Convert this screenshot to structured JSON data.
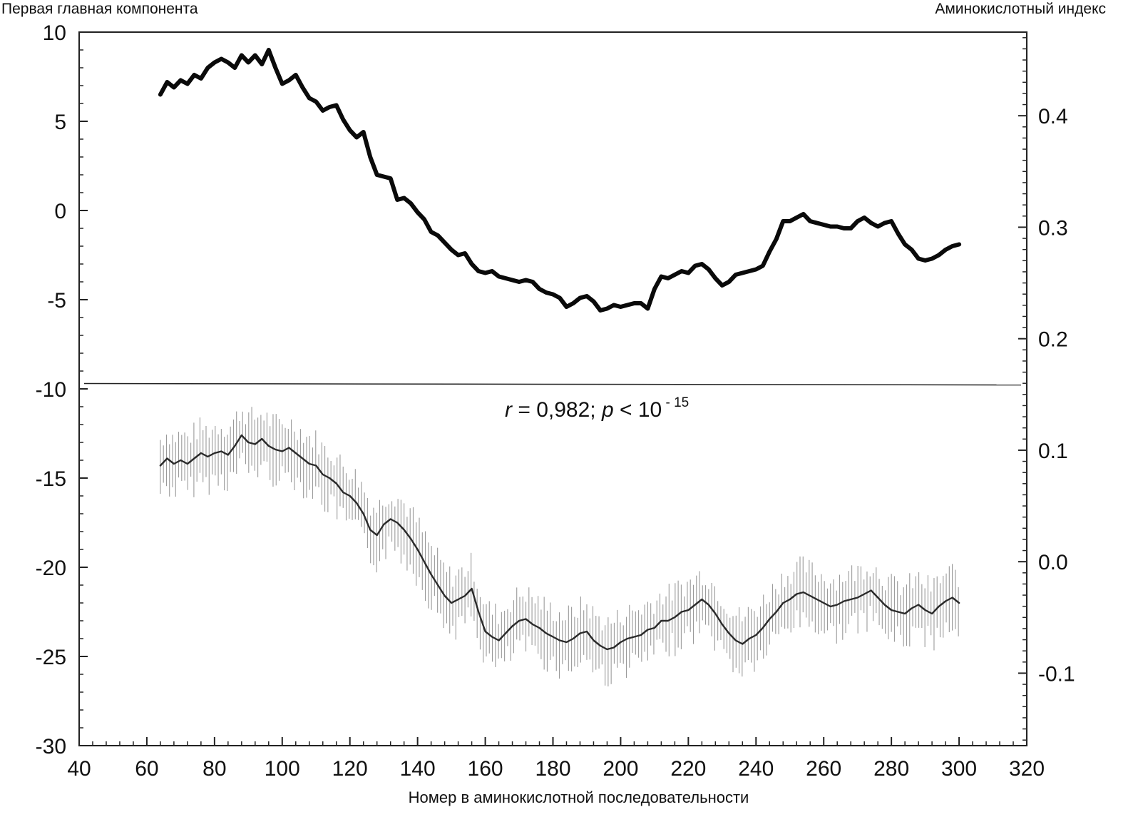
{
  "chart_data": {
    "type": "line",
    "title": "",
    "ylabel_left": "Первая главная компонента",
    "ylabel_right": "Аминокислотный индекс",
    "xlabel": "Номер в аминокислотной последовательности",
    "xlim": [
      40,
      320
    ],
    "ylim_left": [
      -30,
      10
    ],
    "ylim_right": [
      -0.165,
      0.475
    ],
    "x_ticks": [
      "40",
      "60",
      "80",
      "100",
      "120",
      "140",
      "160",
      "180",
      "200",
      "220",
      "240",
      "260",
      "280",
      "300",
      "320"
    ],
    "y_left_ticks": [
      "10",
      "5",
      "0",
      "-5",
      "-10",
      "-15",
      "-20",
      "-25",
      "-30"
    ],
    "y_right_ticks": [
      "0.4",
      "0.3",
      "0.2",
      "0.1",
      "0.0",
      "-0.1"
    ],
    "divider_y_left": -9.7,
    "annotation": {
      "r_label": "r",
      "r_value": " = 0,982;  ",
      "p_label": "p",
      "p_value": " < 10",
      "p_exp": " - 15"
    },
    "series": [
      {
        "axis": "left",
        "style": "thick-black",
        "x": [
          64,
          66,
          68,
          70,
          72,
          74,
          76,
          78,
          80,
          82,
          84,
          86,
          88,
          90,
          92,
          94,
          96,
          98,
          100,
          102,
          104,
          106,
          108,
          110,
          112,
          114,
          116,
          118,
          120,
          122,
          124,
          126,
          128,
          130,
          132,
          134,
          136,
          138,
          140,
          142,
          144,
          146,
          148,
          150,
          152,
          154,
          156,
          158,
          160,
          162,
          164,
          166,
          168,
          170,
          172,
          174,
          176,
          178,
          180,
          182,
          184,
          186,
          188,
          190,
          192,
          194,
          196,
          198,
          200,
          202,
          204,
          206,
          208,
          210,
          212,
          214,
          216,
          218,
          220,
          222,
          224,
          226,
          228,
          230,
          232,
          234,
          236,
          238,
          240,
          242,
          244,
          246,
          248,
          250,
          252,
          254,
          256,
          258,
          260,
          262,
          264,
          266,
          268,
          270,
          272,
          274,
          276,
          278,
          280,
          282,
          284,
          286,
          288,
          290,
          292,
          294,
          296,
          298,
          300
        ],
        "y": [
          6.5,
          7.2,
          6.9,
          7.3,
          7.1,
          7.6,
          7.4,
          8.0,
          8.3,
          8.5,
          8.3,
          8.0,
          8.7,
          8.3,
          8.7,
          8.2,
          9.0,
          8.0,
          7.1,
          7.3,
          7.6,
          6.9,
          6.3,
          6.1,
          5.6,
          5.8,
          5.9,
          5.1,
          4.5,
          4.1,
          4.4,
          3.0,
          2.0,
          1.9,
          1.8,
          0.6,
          0.7,
          0.4,
          -0.1,
          -0.5,
          -1.2,
          -1.4,
          -1.8,
          -2.2,
          -2.5,
          -2.4,
          -3.0,
          -3.4,
          -3.5,
          -3.4,
          -3.7,
          -3.8,
          -3.9,
          -4.0,
          -3.9,
          -4.0,
          -4.4,
          -4.6,
          -4.7,
          -4.9,
          -5.4,
          -5.2,
          -4.9,
          -4.8,
          -5.1,
          -5.6,
          -5.5,
          -5.3,
          -5.4,
          -5.3,
          -5.2,
          -5.2,
          -5.5,
          -4.4,
          -3.7,
          -3.8,
          -3.6,
          -3.4,
          -3.5,
          -3.1,
          -3.0,
          -3.3,
          -3.8,
          -4.2,
          -4.0,
          -3.6,
          -3.5,
          -3.4,
          -3.3,
          -3.1,
          -2.3,
          -1.6,
          -0.6,
          -0.6,
          -0.4,
          -0.2,
          -0.6,
          -0.7,
          -0.8,
          -0.9,
          -0.9,
          -1.0,
          -1.0,
          -0.6,
          -0.4,
          -0.7,
          -0.9,
          -0.7,
          -0.6,
          -1.3,
          -1.9,
          -2.2,
          -2.7,
          -2.8,
          -2.7,
          -2.5,
          -2.2,
          -2.0,
          -1.9
        ]
      },
      {
        "axis": "left",
        "style": "thin-dark-with-grey-spread",
        "x": [
          64,
          66,
          68,
          70,
          72,
          74,
          76,
          78,
          80,
          82,
          84,
          86,
          88,
          90,
          92,
          94,
          96,
          98,
          100,
          102,
          104,
          106,
          108,
          110,
          112,
          114,
          116,
          118,
          120,
          122,
          124,
          126,
          128,
          130,
          132,
          134,
          136,
          138,
          140,
          142,
          144,
          146,
          148,
          150,
          152,
          154,
          156,
          158,
          160,
          162,
          164,
          166,
          168,
          170,
          172,
          174,
          176,
          178,
          180,
          182,
          184,
          186,
          188,
          190,
          192,
          194,
          196,
          198,
          200,
          202,
          204,
          206,
          208,
          210,
          212,
          214,
          216,
          218,
          220,
          222,
          224,
          226,
          228,
          230,
          232,
          234,
          236,
          238,
          240,
          242,
          244,
          246,
          248,
          250,
          252,
          254,
          256,
          258,
          260,
          262,
          264,
          266,
          268,
          270,
          272,
          274,
          276,
          278,
          280,
          282,
          284,
          286,
          288,
          290,
          292,
          294,
          296,
          298,
          300
        ],
        "y": [
          -14.3,
          -13.9,
          -14.2,
          -14.0,
          -14.2,
          -13.9,
          -13.6,
          -13.8,
          -13.6,
          -13.5,
          -13.7,
          -13.2,
          -12.6,
          -13.0,
          -13.1,
          -12.8,
          -13.2,
          -13.4,
          -13.5,
          -13.3,
          -13.6,
          -13.9,
          -14.2,
          -14.3,
          -14.8,
          -15.0,
          -15.3,
          -15.8,
          -16.0,
          -16.4,
          -17.0,
          -17.9,
          -18.2,
          -17.6,
          -17.3,
          -17.5,
          -17.9,
          -18.4,
          -19.0,
          -19.7,
          -20.4,
          -21.0,
          -21.6,
          -22.0,
          -21.8,
          -21.6,
          -21.2,
          -22.5,
          -23.6,
          -23.9,
          -24.1,
          -23.7,
          -23.3,
          -23.0,
          -22.9,
          -23.2,
          -23.4,
          -23.7,
          -23.9,
          -24.1,
          -24.2,
          -24.0,
          -23.7,
          -23.6,
          -24.1,
          -24.4,
          -24.6,
          -24.5,
          -24.2,
          -24.0,
          -23.9,
          -23.8,
          -23.5,
          -23.4,
          -23.0,
          -23.0,
          -22.8,
          -22.5,
          -22.4,
          -22.1,
          -21.8,
          -22.1,
          -22.6,
          -23.2,
          -23.7,
          -24.1,
          -24.3,
          -24.0,
          -23.8,
          -23.4,
          -22.9,
          -22.5,
          -22.0,
          -21.8,
          -21.5,
          -21.4,
          -21.6,
          -21.8,
          -22.0,
          -22.2,
          -22.1,
          -21.9,
          -21.8,
          -21.7,
          -21.5,
          -21.3,
          -21.7,
          -22.1,
          -22.4,
          -22.5,
          -22.6,
          -22.3,
          -22.1,
          -22.4,
          -22.6,
          -22.2,
          -21.9,
          -21.7,
          -22.0
        ]
      }
    ]
  }
}
